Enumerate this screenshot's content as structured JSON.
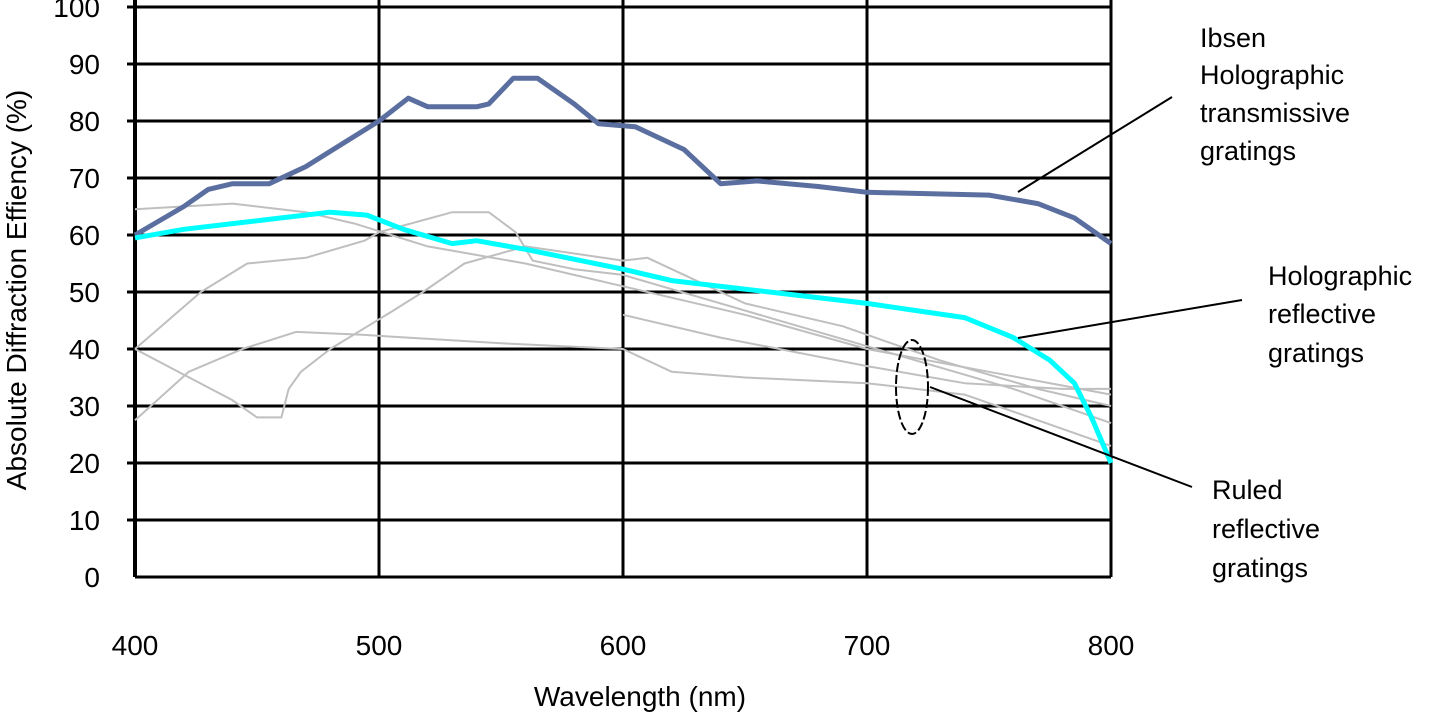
{
  "chart_data": {
    "type": "line",
    "title": "",
    "xlabel": "Wavelength (nm)",
    "ylabel": "Absolute Diffraction Effiency (%)",
    "xlim": [
      400,
      800
    ],
    "ylim": [
      0,
      100
    ],
    "xticks": [
      "400",
      "500",
      "600",
      "700",
      "800"
    ],
    "yticks": [
      "0",
      "10",
      "20",
      "30",
      "40",
      "50",
      "60",
      "70",
      "80",
      "90",
      "100"
    ],
    "grid": true,
    "colors": {
      "ibsen": "#5a6ea0",
      "holographic_reflective": "#00ffff",
      "ruled": "#bfbfbf"
    },
    "series": [
      {
        "key": "ibsen",
        "color": "#5a6ea0",
        "width": 5,
        "points": [
          [
            400,
            60
          ],
          [
            420,
            65
          ],
          [
            430,
            68
          ],
          [
            440,
            69
          ],
          [
            455,
            69
          ],
          [
            470,
            72
          ],
          [
            485,
            76
          ],
          [
            500,
            80
          ],
          [
            512,
            84
          ],
          [
            520,
            82.5
          ],
          [
            540,
            82.5
          ],
          [
            545,
            83
          ],
          [
            555,
            87.5
          ],
          [
            565,
            87.5
          ],
          [
            580,
            83
          ],
          [
            590,
            79.5
          ],
          [
            605,
            79
          ],
          [
            625,
            75
          ],
          [
            640,
            69
          ],
          [
            655,
            69.5
          ],
          [
            680,
            68.5
          ],
          [
            700,
            67.5
          ],
          [
            750,
            67
          ],
          [
            770,
            65.5
          ],
          [
            785,
            63
          ],
          [
            800,
            58.5
          ]
        ]
      },
      {
        "key": "holographic_reflective",
        "color": "#00ffff",
        "width": 5,
        "points": [
          [
            400,
            59.5
          ],
          [
            420,
            61
          ],
          [
            440,
            62
          ],
          [
            460,
            63
          ],
          [
            480,
            64
          ],
          [
            495,
            63.5
          ],
          [
            510,
            61
          ],
          [
            530,
            58.5
          ],
          [
            540,
            59
          ],
          [
            560,
            57.5
          ],
          [
            600,
            54
          ],
          [
            620,
            52
          ],
          [
            660,
            50
          ],
          [
            700,
            48
          ],
          [
            740,
            45.5
          ],
          [
            760,
            42
          ],
          [
            775,
            38
          ],
          [
            785,
            34
          ],
          [
            792,
            28
          ],
          [
            800,
            20
          ]
        ]
      },
      {
        "key": "ruled",
        "color": "#bfbfbf",
        "width": 2,
        "points": [
          [
            400,
            64.5
          ],
          [
            440,
            65.5
          ],
          [
            470,
            64
          ],
          [
            490,
            62
          ],
          [
            520,
            58
          ],
          [
            560,
            55
          ],
          [
            600,
            51
          ],
          [
            650,
            46
          ],
          [
            700,
            40
          ],
          [
            750,
            36
          ],
          [
            800,
            32
          ]
        ]
      },
      {
        "key": "ruled",
        "color": "#bfbfbf",
        "width": 2,
        "points": [
          [
            400,
            40
          ],
          [
            427,
            50
          ],
          [
            446,
            55
          ],
          [
            470,
            56
          ],
          [
            494,
            59
          ],
          [
            500,
            60.5
          ],
          [
            530,
            64
          ],
          [
            545,
            64
          ],
          [
            556,
            60.5
          ],
          [
            563,
            55.5
          ],
          [
            580,
            54
          ],
          [
            600,
            53
          ],
          [
            640,
            48
          ],
          [
            680,
            43
          ],
          [
            720,
            38
          ],
          [
            760,
            33
          ],
          [
            800,
            27
          ]
        ]
      },
      {
        "key": "ruled",
        "color": "#bfbfbf",
        "width": 2,
        "points": [
          [
            400,
            40
          ],
          [
            440,
            31
          ],
          [
            450,
            28
          ],
          [
            460,
            28
          ],
          [
            463,
            33
          ],
          [
            468,
            36
          ],
          [
            480,
            40
          ],
          [
            505,
            46.5
          ],
          [
            518,
            50
          ],
          [
            535,
            55
          ],
          [
            560,
            58
          ],
          [
            600,
            55.5
          ],
          [
            610,
            56
          ],
          [
            620,
            54
          ],
          [
            650,
            48
          ],
          [
            690,
            44
          ],
          [
            730,
            38
          ],
          [
            770,
            33
          ],
          [
            800,
            30
          ]
        ]
      },
      {
        "key": "ruled",
        "color": "#bfbfbf",
        "width": 2,
        "points": [
          [
            400,
            27.5
          ],
          [
            422,
            36
          ],
          [
            444,
            40
          ],
          [
            466,
            43
          ],
          [
            493,
            42.5
          ],
          [
            550,
            41
          ],
          [
            600,
            40
          ],
          [
            620,
            36
          ],
          [
            650,
            35
          ],
          [
            700,
            34
          ],
          [
            740,
            32
          ],
          [
            780,
            26
          ],
          [
            800,
            23
          ]
        ]
      },
      {
        "key": "ruled",
        "color": "#bfbfbf",
        "width": 2,
        "points": [
          [
            600,
            46
          ],
          [
            640,
            42
          ],
          [
            700,
            37
          ],
          [
            740,
            34
          ],
          [
            780,
            33
          ],
          [
            800,
            33
          ]
        ]
      }
    ],
    "annotations": {
      "ibsen": [
        "Ibsen",
        "Holographic",
        "transmissive",
        "gratings"
      ],
      "holographic_reflective": [
        "Holographic",
        "reflective",
        "gratings"
      ],
      "ruled": [
        "Ruled",
        "reflective",
        "gratings"
      ]
    }
  }
}
